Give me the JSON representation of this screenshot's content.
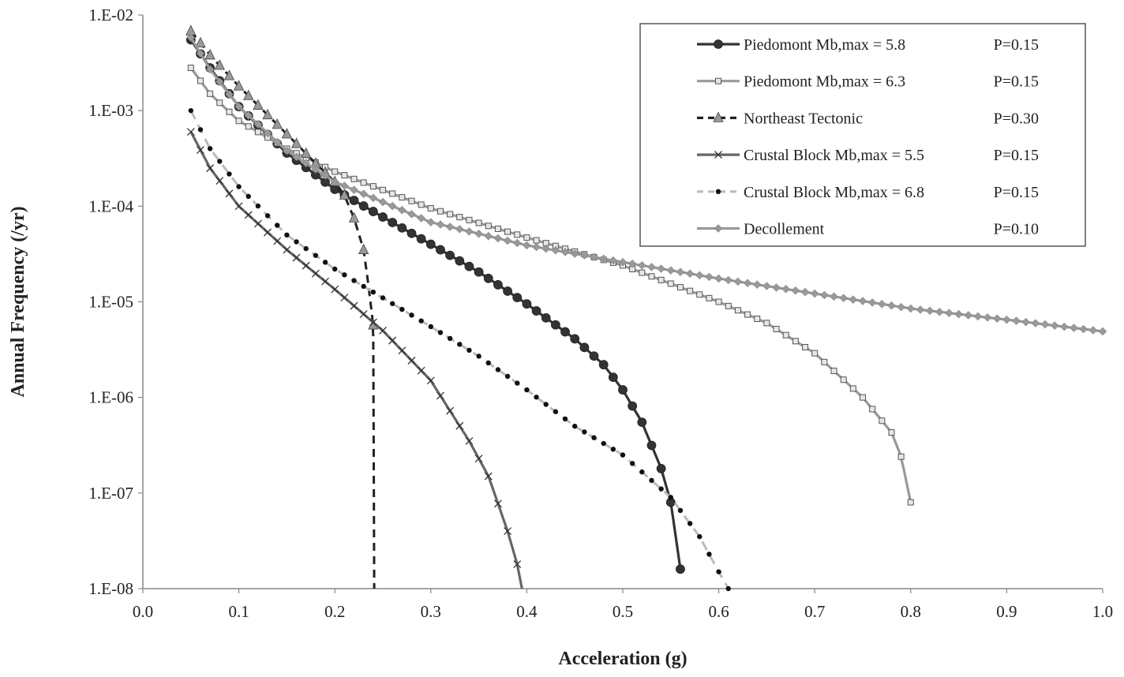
{
  "chart_data": {
    "type": "line",
    "title": "",
    "xlabel": "Acceleration (g)",
    "ylabel": "Annual Frequency (/yr)",
    "xlim": [
      0,
      1
    ],
    "ylim": [
      1e-08,
      0.01
    ],
    "yscale": "log",
    "x_ticks": [
      "0.0",
      "0.1",
      "0.2",
      "0.3",
      "0.4",
      "0.5",
      "0.6",
      "0.7",
      "0.8",
      "0.9",
      "1.0"
    ],
    "y_ticks": [
      "1.E-02",
      "1.E-03",
      "1.E-04",
      "1.E-05",
      "1.E-06",
      "1.E-07",
      "1.E-08"
    ],
    "legend_position": "top-right",
    "series": [
      {
        "name": "Piedomont Mb,max = 5.8",
        "p_label": "P=0.15",
        "marker": "circle",
        "line": "solid",
        "color": "#333333",
        "x": [
          0.05,
          0.07,
          0.1,
          0.15,
          0.2,
          0.25,
          0.3,
          0.35,
          0.4,
          0.45,
          0.48,
          0.5,
          0.52,
          0.54,
          0.55,
          0.56
        ],
        "y": [
          0.0055,
          0.0028,
          0.0011,
          0.00036,
          0.00015,
          7.7e-05,
          4e-05,
          2.05e-05,
          9.5e-06,
          4.1e-06,
          2.2e-06,
          1.2e-06,
          5.5e-07,
          1.8e-07,
          8e-08,
          1.6e-08
        ]
      },
      {
        "name": "Piedomont Mb,max = 6.3",
        "p_label": "P=0.15",
        "marker": "square",
        "line": "solid",
        "color": "#999999",
        "x": [
          0.05,
          0.07,
          0.1,
          0.15,
          0.2,
          0.3,
          0.4,
          0.5,
          0.6,
          0.65,
          0.7,
          0.75,
          0.78,
          0.79,
          0.8
        ],
        "y": [
          0.0028,
          0.0015,
          0.00078,
          0.0004,
          0.00023,
          9.5e-05,
          4.7e-05,
          2.4e-05,
          1e-05,
          6e-06,
          2.9e-06,
          1e-06,
          4.3e-07,
          2.4e-07,
          8e-08
        ]
      },
      {
        "name": "Northeast Tectonic",
        "p_label": "P=0.30",
        "marker": "triangle",
        "line": "dashed",
        "color": "#222222",
        "marker_color": "#999999",
        "x": [
          0.05,
          0.07,
          0.1,
          0.13,
          0.16,
          0.18,
          0.2,
          0.21,
          0.22,
          0.23,
          0.235,
          0.24,
          0.241
        ],
        "y": [
          0.0068,
          0.0038,
          0.0018,
          0.0009,
          0.00045,
          0.00028,
          0.00018,
          0.00013,
          7.5e-05,
          3.5e-05,
          1.5e-05,
          5.7e-06,
          1e-08
        ]
      },
      {
        "name": "Crustal Block Mb,max = 5.5",
        "p_label": "P=0.15",
        "marker": "x",
        "line": "solid",
        "color": "#666666",
        "x": [
          0.05,
          0.07,
          0.1,
          0.15,
          0.2,
          0.25,
          0.3,
          0.34,
          0.36,
          0.38,
          0.39,
          0.395
        ],
        "y": [
          0.0006,
          0.00025,
          0.0001,
          3.5e-05,
          1.35e-05,
          5e-06,
          1.5e-06,
          3.5e-07,
          1.5e-07,
          4e-08,
          1.8e-08,
          1e-08
        ]
      },
      {
        "name": "Crustal Block Mb,max = 6.8",
        "p_label": "P=0.15",
        "marker": "dot",
        "line": "dashed",
        "color": "#bbbbbb",
        "marker_color": "#111111",
        "x": [
          0.05,
          0.07,
          0.1,
          0.15,
          0.2,
          0.25,
          0.3,
          0.35,
          0.4,
          0.45,
          0.5,
          0.55,
          0.58,
          0.6,
          0.61
        ],
        "y": [
          0.001,
          0.0004,
          0.00016,
          5e-05,
          2.2e-05,
          1.1e-05,
          5.5e-06,
          2.7e-06,
          1.2e-06,
          5e-07,
          2.5e-07,
          9e-08,
          3.5e-08,
          1.5e-08,
          1e-08
        ]
      },
      {
        "name": "Decollement",
        "p_label": "P=0.10",
        "marker": "diamond",
        "line": "solid",
        "color": "#999999",
        "x": [
          0.05,
          0.07,
          0.1,
          0.15,
          0.2,
          0.3,
          0.4,
          0.5,
          0.6,
          0.7,
          0.8,
          0.9,
          1.0
        ],
        "y": [
          0.0058,
          0.0027,
          0.0011,
          0.00038,
          0.00018,
          6.8e-05,
          3.9e-05,
          2.6e-05,
          1.75e-05,
          1.22e-05,
          8.5e-06,
          6.5e-06,
          4.9e-06
        ]
      }
    ]
  }
}
